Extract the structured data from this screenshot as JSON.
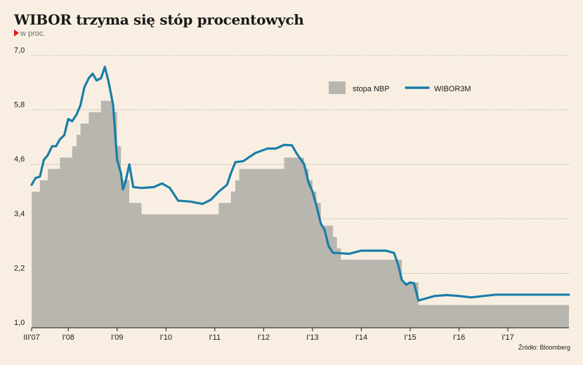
{
  "header": {
    "title": "WIBOR trzyma się stóp procentowych",
    "subtitle": "w proc."
  },
  "footer": {
    "source": "Źródło: Bloomberg"
  },
  "colors": {
    "background": "#f8efe2",
    "nbp_fill": "#b8b6ae",
    "wibor_line": "#1a7ea8",
    "grid": "#7f7f7f",
    "title": "#1a1a1a",
    "accent": "#d42020"
  },
  "chart_data": {
    "type": "line",
    "title": "WIBOR trzyma się stóp procentowych",
    "ylabel": "w proc.",
    "xlabel": "",
    "ylim": [
      1.0,
      7.0
    ],
    "xlim": [
      2007.25,
      2018.25
    ],
    "y_ticks": [
      "1,0",
      "2,2",
      "3,4",
      "4,6",
      "5,8",
      "7,0"
    ],
    "x_ticks": [
      {
        "label": "III'07",
        "x": 2007.25
      },
      {
        "label": "I'08",
        "x": 2008.0
      },
      {
        "label": "I'09",
        "x": 2009.0
      },
      {
        "label": "I'10",
        "x": 2010.0
      },
      {
        "label": "I'11",
        "x": 2011.0
      },
      {
        "label": "I'12",
        "x": 2012.0
      },
      {
        "label": "I'13",
        "x": 2013.0
      },
      {
        "label": "I'14",
        "x": 2014.0
      },
      {
        "label": "I'15",
        "x": 2015.0
      },
      {
        "label": "I'16",
        "x": 2016.0
      },
      {
        "label": "I'17",
        "x": 2017.0
      }
    ],
    "grid": "horizontal",
    "legend_position": "top-right",
    "series": [
      {
        "name": "stopa NBP",
        "type": "step-area",
        "points": [
          [
            2007.25,
            4.0
          ],
          [
            2007.42,
            4.25
          ],
          [
            2007.58,
            4.5
          ],
          [
            2007.83,
            4.75
          ],
          [
            2008.08,
            5.0
          ],
          [
            2008.17,
            5.25
          ],
          [
            2008.25,
            5.5
          ],
          [
            2008.42,
            5.75
          ],
          [
            2008.67,
            6.0
          ],
          [
            2008.92,
            5.75
          ],
          [
            2009.0,
            5.0
          ],
          [
            2009.08,
            4.25
          ],
          [
            2009.25,
            3.75
          ],
          [
            2009.5,
            3.5
          ],
          [
            2011.08,
            3.75
          ],
          [
            2011.33,
            4.0
          ],
          [
            2011.42,
            4.25
          ],
          [
            2011.5,
            4.5
          ],
          [
            2012.42,
            4.75
          ],
          [
            2012.83,
            4.5
          ],
          [
            2012.92,
            4.25
          ],
          [
            2013.0,
            4.0
          ],
          [
            2013.08,
            3.75
          ],
          [
            2013.17,
            3.25
          ],
          [
            2013.42,
            3.0
          ],
          [
            2013.5,
            2.75
          ],
          [
            2013.58,
            2.5
          ],
          [
            2014.83,
            2.0
          ],
          [
            2015.17,
            1.5
          ],
          [
            2018.25,
            1.5
          ]
        ]
      },
      {
        "name": "WIBOR3M",
        "type": "line",
        "points": [
          [
            2007.25,
            4.15
          ],
          [
            2007.33,
            4.3
          ],
          [
            2007.42,
            4.33
          ],
          [
            2007.5,
            4.7
          ],
          [
            2007.58,
            4.8
          ],
          [
            2007.67,
            5.0
          ],
          [
            2007.75,
            5.0
          ],
          [
            2007.83,
            5.15
          ],
          [
            2007.92,
            5.25
          ],
          [
            2008.0,
            5.6
          ],
          [
            2008.08,
            5.55
          ],
          [
            2008.17,
            5.7
          ],
          [
            2008.25,
            5.9
          ],
          [
            2008.33,
            6.3
          ],
          [
            2008.42,
            6.5
          ],
          [
            2008.5,
            6.6
          ],
          [
            2008.58,
            6.45
          ],
          [
            2008.67,
            6.5
          ],
          [
            2008.75,
            6.75
          ],
          [
            2008.83,
            6.4
          ],
          [
            2008.92,
            5.9
          ],
          [
            2009.0,
            4.7
          ],
          [
            2009.08,
            4.4
          ],
          [
            2009.12,
            4.05
          ],
          [
            2009.17,
            4.2
          ],
          [
            2009.25,
            4.6
          ],
          [
            2009.33,
            4.1
          ],
          [
            2009.5,
            4.08
          ],
          [
            2009.75,
            4.1
          ],
          [
            2009.92,
            4.18
          ],
          [
            2010.08,
            4.08
          ],
          [
            2010.25,
            3.8
          ],
          [
            2010.5,
            3.78
          ],
          [
            2010.75,
            3.73
          ],
          [
            2010.92,
            3.82
          ],
          [
            2011.08,
            4.0
          ],
          [
            2011.25,
            4.15
          ],
          [
            2011.33,
            4.4
          ],
          [
            2011.42,
            4.65
          ],
          [
            2011.58,
            4.67
          ],
          [
            2011.83,
            4.85
          ],
          [
            2012.08,
            4.95
          ],
          [
            2012.25,
            4.95
          ],
          [
            2012.42,
            5.03
          ],
          [
            2012.58,
            5.02
          ],
          [
            2012.67,
            4.85
          ],
          [
            2012.83,
            4.6
          ],
          [
            2012.92,
            4.2
          ],
          [
            2013.0,
            4.0
          ],
          [
            2013.08,
            3.7
          ],
          [
            2013.17,
            3.3
          ],
          [
            2013.25,
            3.15
          ],
          [
            2013.33,
            2.8
          ],
          [
            2013.42,
            2.65
          ],
          [
            2013.5,
            2.65
          ],
          [
            2013.75,
            2.63
          ],
          [
            2014.0,
            2.7
          ],
          [
            2014.25,
            2.7
          ],
          [
            2014.5,
            2.7
          ],
          [
            2014.67,
            2.65
          ],
          [
            2014.75,
            2.4
          ],
          [
            2014.83,
            2.05
          ],
          [
            2014.92,
            1.95
          ],
          [
            2015.0,
            2.0
          ],
          [
            2015.08,
            1.98
          ],
          [
            2015.17,
            1.6
          ],
          [
            2015.33,
            1.65
          ],
          [
            2015.5,
            1.7
          ],
          [
            2015.75,
            1.72
          ],
          [
            2016.0,
            1.7
          ],
          [
            2016.25,
            1.67
          ],
          [
            2016.5,
            1.7
          ],
          [
            2016.75,
            1.73
          ],
          [
            2017.0,
            1.73
          ],
          [
            2017.25,
            1.73
          ],
          [
            2017.5,
            1.73
          ],
          [
            2018.25,
            1.73
          ]
        ]
      }
    ]
  }
}
